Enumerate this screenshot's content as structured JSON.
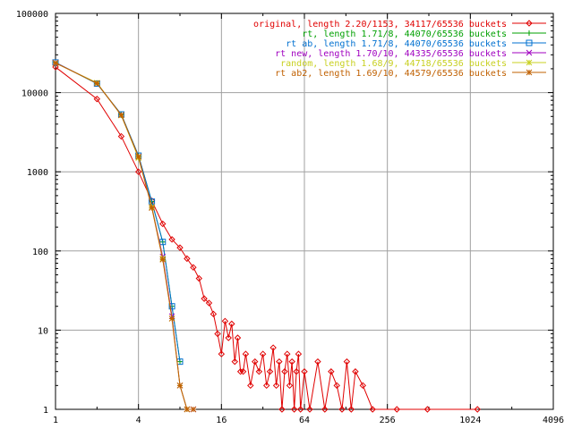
{
  "chart_data": {
    "type": "line",
    "title": "",
    "xlabel": "",
    "ylabel": "",
    "x_scale": "log2",
    "y_scale": "log10",
    "xlim": [
      1,
      4096
    ],
    "ylim": [
      1,
      100000
    ],
    "grid": true,
    "legend_position": "top-right",
    "x_ticks": [
      1,
      4,
      16,
      64,
      256,
      1024,
      4096
    ],
    "x_tick_labels": [
      "1",
      "4",
      "16",
      "64",
      "256",
      "1024",
      "4096"
    ],
    "y_ticks": [
      1,
      10,
      100,
      1000,
      10000,
      100000
    ],
    "y_tick_labels": [
      "1",
      "10",
      "100",
      "1000",
      "10000",
      "100000"
    ],
    "series": [
      {
        "name": "original, length 2.20/1153, 34117/65536 buckets",
        "color": "#e00000",
        "marker": "diamond",
        "x": [
          1,
          2,
          3,
          4,
          5,
          6,
          7,
          8,
          9,
          10,
          11,
          12,
          13,
          14,
          15,
          16,
          17,
          18,
          19,
          20,
          21,
          22,
          23,
          24,
          26,
          28,
          30,
          32,
          34,
          36,
          38,
          40,
          42,
          44,
          46,
          48,
          50,
          52,
          54,
          56,
          58,
          60,
          64,
          70,
          80,
          90,
          100,
          110,
          120,
          130,
          140,
          150,
          170,
          200,
          300,
          500,
          1153
        ],
        "y": [
          21000,
          8300,
          2800,
          1000,
          430,
          220,
          140,
          110,
          80,
          62,
          45,
          25,
          22,
          16,
          9,
          5,
          13,
          8,
          12,
          4,
          8,
          3,
          3,
          5,
          2,
          4,
          3,
          5,
          2,
          3,
          6,
          2,
          4,
          1,
          3,
          5,
          2,
          4,
          1,
          3,
          5,
          1,
          3,
          1,
          4,
          1,
          3,
          2,
          1,
          4,
          1,
          3,
          2,
          1,
          1,
          1,
          1
        ]
      },
      {
        "name": "rt, length 1.71/8, 44070/65536 buckets",
        "color": "#00a000",
        "marker": "plus",
        "x": [
          1,
          2,
          3,
          4,
          5,
          6,
          7,
          8
        ],
        "y": [
          24000,
          13000,
          5300,
          1600,
          420,
          130,
          20,
          4
        ]
      },
      {
        "name": "rt ab, length 1.71/8, 44070/65536 buckets",
        "color": "#0070d0",
        "marker": "square",
        "x": [
          1,
          2,
          3,
          4,
          5,
          6,
          7,
          8
        ],
        "y": [
          24000,
          13000,
          5300,
          1600,
          420,
          130,
          20,
          4
        ]
      },
      {
        "name": "rt new, length 1.70/10, 44335/65536 buckets",
        "color": "#a000c0",
        "marker": "cross",
        "x": [
          1,
          2,
          3,
          4,
          5,
          6,
          7,
          8,
          9,
          10
        ],
        "y": [
          23800,
          13200,
          5200,
          1550,
          360,
          85,
          15,
          2,
          1,
          1
        ]
      },
      {
        "name": "random, length 1.68/9, 44718/65536 buckets",
        "color": "#c8d020",
        "marker": "star",
        "x": [
          1,
          2,
          3,
          4,
          5,
          6,
          7,
          8,
          9
        ],
        "y": [
          23600,
          13300,
          5150,
          1500,
          360,
          80,
          14,
          2,
          1
        ]
      },
      {
        "name": "rt ab2, length 1.69/10, 44579/65536 buckets",
        "color": "#c06000",
        "marker": "asterisk",
        "x": [
          1,
          2,
          3,
          4,
          5,
          6,
          7,
          8,
          9,
          10
        ],
        "y": [
          23700,
          13100,
          5200,
          1550,
          350,
          78,
          14,
          2,
          1,
          1
        ]
      }
    ]
  }
}
